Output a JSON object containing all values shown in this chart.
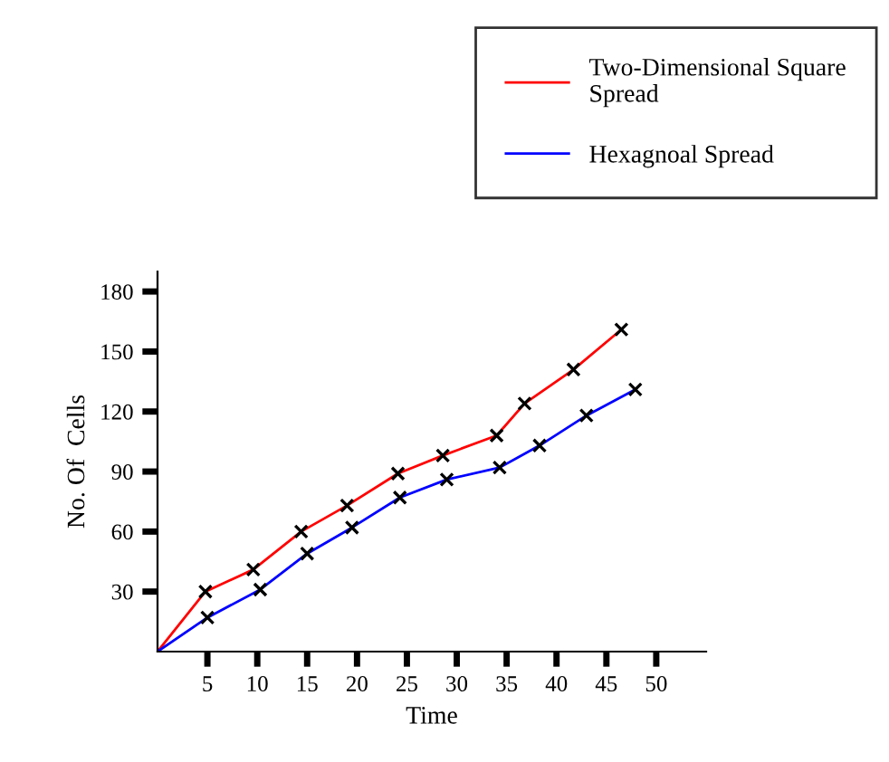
{
  "chart_data": {
    "type": "line",
    "xlabel": "Time",
    "ylabel": "No. Of  Cells",
    "xlim": [
      0,
      55
    ],
    "xticks": [
      5,
      10,
      15,
      20,
      25,
      30,
      35,
      40,
      45,
      50
    ],
    "ylim": [
      0,
      190
    ],
    "yticks": [
      30,
      60,
      90,
      120,
      150,
      180
    ],
    "marker": "cross",
    "legend": "top right",
    "grid": false,
    "series": [
      {
        "name": "Two-Dimensional Square\nSpread",
        "color": "#ff0000",
        "x": [
          0,
          4.8,
          9.6,
          14.4,
          19.0,
          24.1,
          28.6,
          34.0,
          36.8,
          41.7,
          46.5
        ],
        "values": [
          0,
          30,
          41,
          60,
          73,
          89,
          98,
          108,
          124,
          141,
          161
        ]
      },
      {
        "name": "Hexagnoal Spread",
        "color": "#0000ff",
        "x": [
          0,
          5.0,
          10.3,
          15.0,
          19.5,
          24.3,
          29.0,
          34.3,
          38.3,
          43.0,
          47.9
        ],
        "values": [
          0,
          17,
          31,
          49,
          62,
          77,
          86,
          92,
          103,
          118,
          131
        ]
      }
    ]
  }
}
